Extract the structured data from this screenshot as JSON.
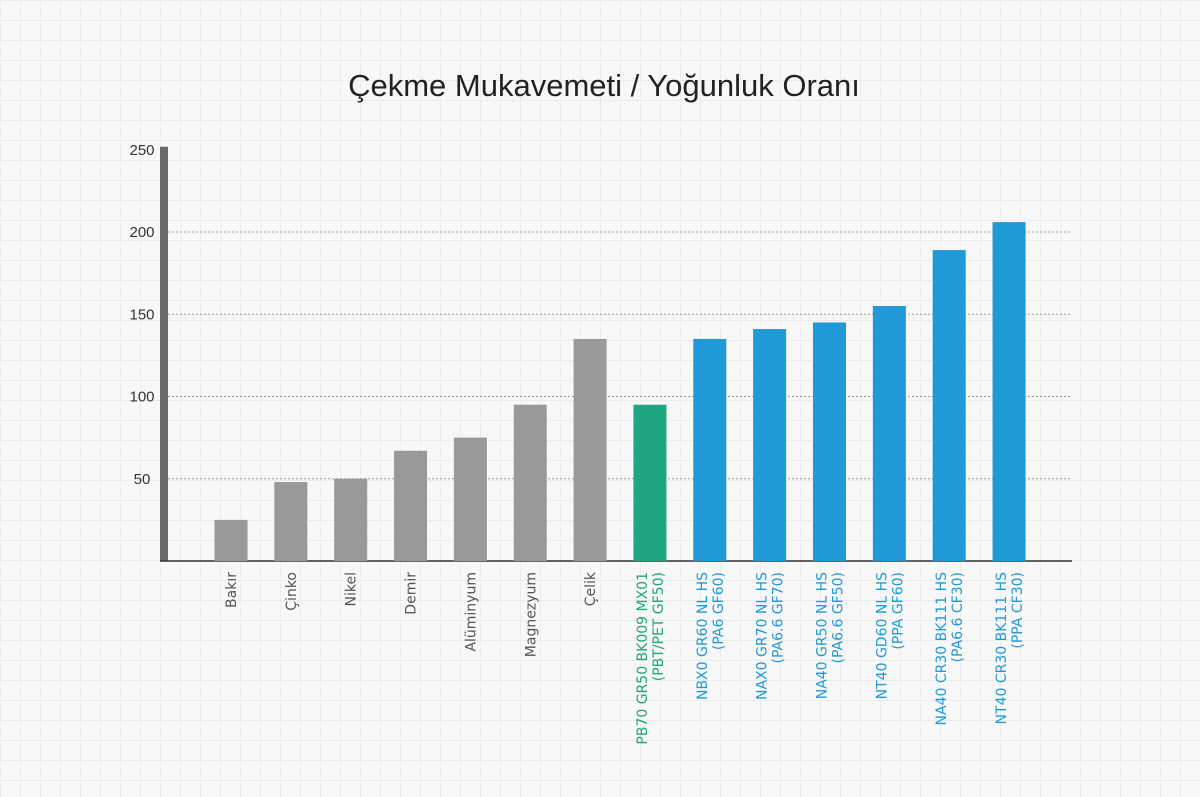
{
  "chart_data": {
    "type": "bar",
    "title": "Çekme Mukavemeti / Yoğunluk Oranı",
    "xlabel": "",
    "ylabel": "",
    "ylim": [
      0,
      250
    ],
    "yticks": [
      50,
      100,
      150,
      200,
      250
    ],
    "grid": "horizontal-dotted",
    "categories": [
      [
        "Bakır"
      ],
      [
        "Çinko"
      ],
      [
        "Nikel"
      ],
      [
        "Demir"
      ],
      [
        "Alüminyum"
      ],
      [
        "Magnezyum"
      ],
      [
        "Çelik"
      ],
      [
        "PB70 GR50 BK009 MX01",
        "(PBT/PET GF50)"
      ],
      [
        "NBX0 GR60 NL HS",
        "(PA6 GF60)"
      ],
      [
        "NAX0 GR70 NL HS",
        "(PA6.6 GF70)"
      ],
      [
        "NA40 GR50 NL HS",
        "(PA6.6 GF50)"
      ],
      [
        "NT40 GD60 NL HS",
        "(PPA GF60)"
      ],
      [
        "NA40 CR30 BK111 HS",
        "(PA6.6 CF30)"
      ],
      [
        "NT40 CR30 BK111 HS",
        "(PPA CF30)"
      ]
    ],
    "values": [
      25,
      48,
      50,
      67,
      75,
      95,
      135,
      95,
      135,
      141,
      145,
      155,
      189,
      206
    ],
    "groups": [
      "metal",
      "metal",
      "metal",
      "metal",
      "metal",
      "metal",
      "metal",
      "pbt",
      "pa",
      "pa",
      "pa",
      "pa",
      "pa",
      "pa"
    ],
    "colors": {
      "metal": "#999999",
      "pbt": "#1fa57f",
      "pa": "#1f9ad6",
      "metal_label": "#555555"
    }
  }
}
